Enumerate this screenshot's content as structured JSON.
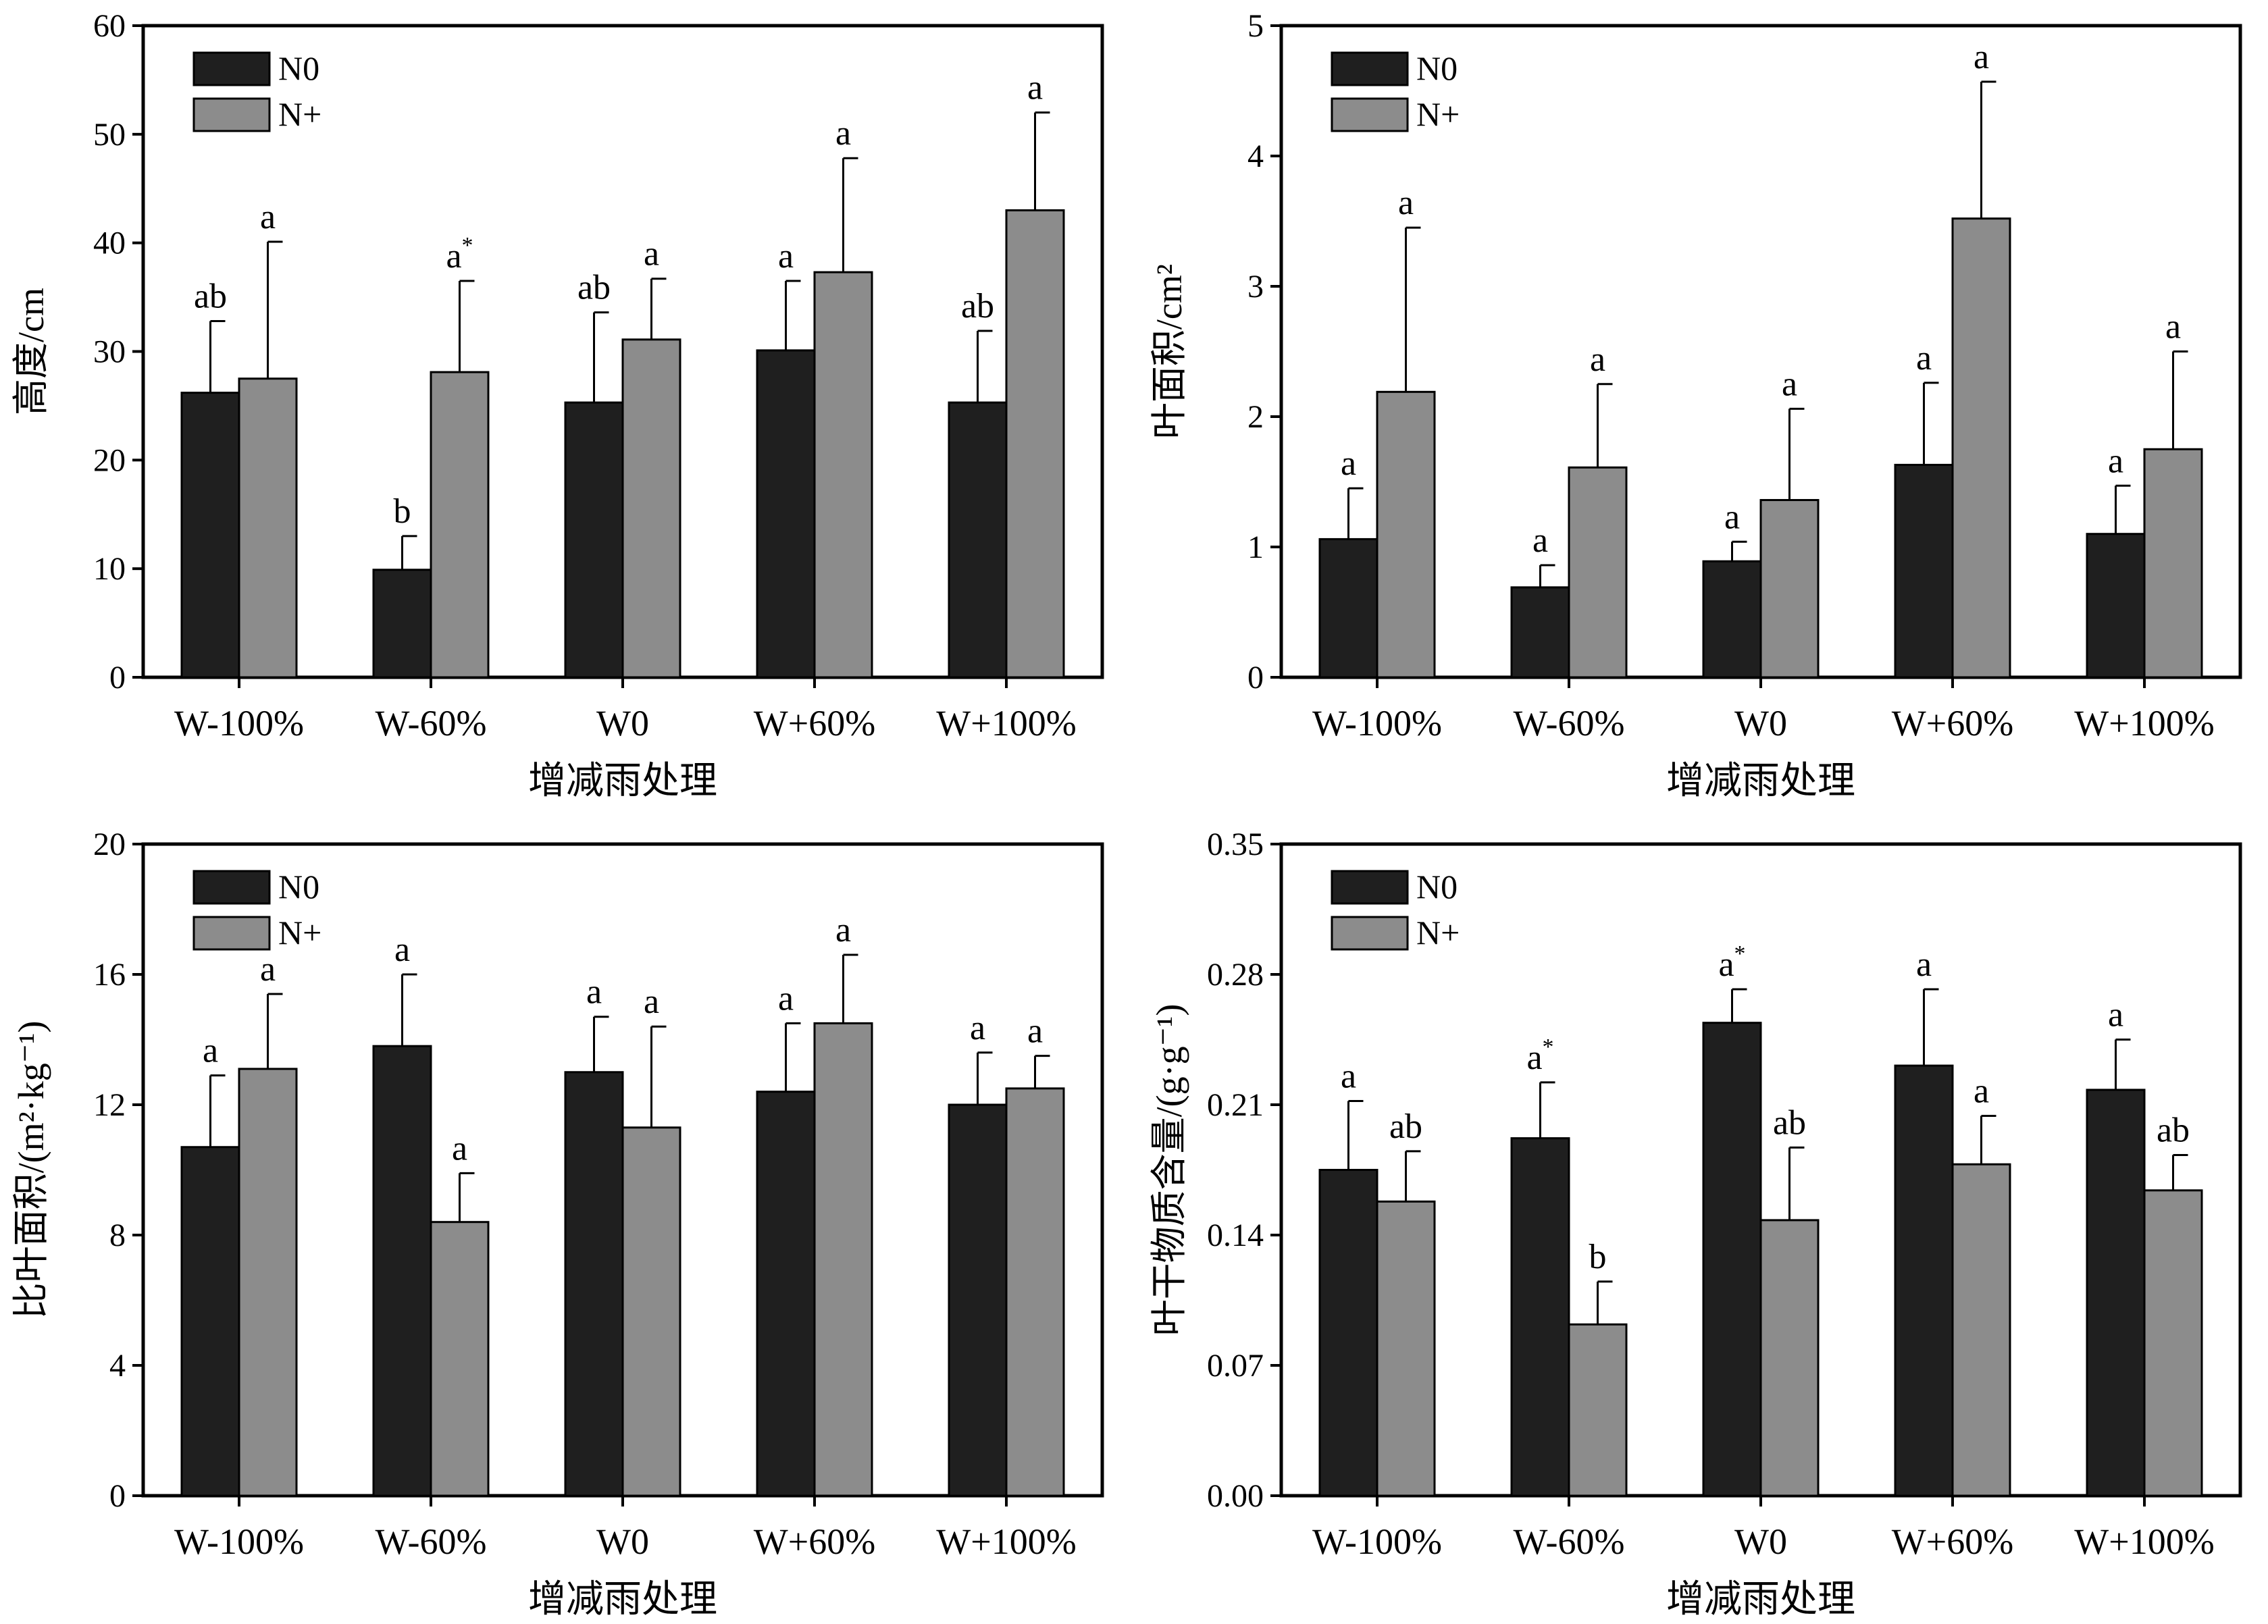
{
  "colors": {
    "N0": "#1f1f1f",
    "N+": "#8c8c8c",
    "axis": "#000000"
  },
  "chart_data": [
    {
      "type": "bar",
      "categories": [
        "W-100%",
        "W-60%",
        "W0",
        "W+60%",
        "W+100%"
      ],
      "xlabel": "增减雨处理",
      "ylabel": "高度/cm",
      "ylim": [
        0,
        60
      ],
      "yticks": [
        "0",
        "10",
        "20",
        "30",
        "40",
        "50",
        "60"
      ],
      "series": [
        {
          "name": "N0",
          "values": [
            26.2,
            9.9,
            25.3,
            30.1,
            25.3
          ],
          "err": [
            32.8,
            13.0,
            33.6,
            36.5,
            31.9
          ],
          "labels": [
            "ab",
            "b",
            "ab",
            "a",
            "ab"
          ],
          "stars": [
            false,
            false,
            false,
            false,
            false
          ]
        },
        {
          "name": "N+",
          "values": [
            27.5,
            28.1,
            31.1,
            37.3,
            43.0
          ],
          "err": [
            40.1,
            36.5,
            36.7,
            47.8,
            52.0
          ],
          "labels": [
            "a",
            "a",
            "a",
            "a",
            "a"
          ],
          "stars": [
            false,
            true,
            false,
            false,
            false
          ]
        }
      ]
    },
    {
      "type": "bar",
      "categories": [
        "W-100%",
        "W-60%",
        "W0",
        "W+60%",
        "W+100%"
      ],
      "xlabel": "增减雨处理",
      "ylabel": "叶面积/cm²",
      "ylim": [
        0,
        5
      ],
      "yticks": [
        "0",
        "1",
        "2",
        "3",
        "4",
        "5"
      ],
      "series": [
        {
          "name": "N0",
          "values": [
            1.06,
            0.69,
            0.89,
            1.63,
            1.1
          ],
          "err": [
            1.45,
            0.86,
            1.04,
            2.26,
            1.47
          ],
          "labels": [
            "a",
            "a",
            "a",
            "a",
            "a"
          ],
          "stars": [
            false,
            false,
            false,
            false,
            false
          ]
        },
        {
          "name": "N+",
          "values": [
            2.19,
            1.61,
            1.36,
            3.52,
            1.75
          ],
          "err": [
            3.45,
            2.25,
            2.06,
            4.57,
            2.5
          ],
          "labels": [
            "a",
            "a",
            "a",
            "a",
            "a"
          ],
          "stars": [
            false,
            false,
            false,
            false,
            false
          ]
        }
      ]
    },
    {
      "type": "bar",
      "categories": [
        "W-100%",
        "W-60%",
        "W0",
        "W+60%",
        "W+100%"
      ],
      "xlabel": "增减雨处理",
      "ylabel": "比叶面积/(m²·kg⁻¹)",
      "ylim": [
        0,
        20
      ],
      "yticks": [
        "0",
        "4",
        "8",
        "12",
        "16",
        "20"
      ],
      "series": [
        {
          "name": "N0",
          "values": [
            10.7,
            13.8,
            13.0,
            12.4,
            12.0
          ],
          "err": [
            12.9,
            16.0,
            14.7,
            14.5,
            13.6
          ],
          "labels": [
            "a",
            "a",
            "a",
            "a",
            "a"
          ],
          "stars": [
            false,
            false,
            false,
            false,
            false
          ]
        },
        {
          "name": "N+",
          "values": [
            13.1,
            8.4,
            11.3,
            14.5,
            12.5
          ],
          "err": [
            15.4,
            9.9,
            14.4,
            16.6,
            13.5
          ],
          "labels": [
            "a",
            "a",
            "a",
            "a",
            "a"
          ],
          "stars": [
            false,
            false,
            false,
            false,
            false
          ]
        }
      ]
    },
    {
      "type": "bar",
      "categories": [
        "W-100%",
        "W-60%",
        "W0",
        "W+60%",
        "W+100%"
      ],
      "xlabel": "增减雨处理",
      "ylabel": "叶干物质含量/(g·g⁻¹)",
      "ylim": [
        0,
        0.35
      ],
      "yticks": [
        "0.00",
        "0.07",
        "0.14",
        "0.21",
        "0.28",
        "0.35"
      ],
      "series": [
        {
          "name": "N0",
          "values": [
            0.175,
            0.192,
            0.254,
            0.231,
            0.218
          ],
          "err": [
            0.212,
            0.222,
            0.272,
            0.272,
            0.245
          ],
          "labels": [
            "a",
            "a",
            "a",
            "a",
            "a"
          ],
          "stars": [
            false,
            true,
            true,
            false,
            false
          ]
        },
        {
          "name": "N+",
          "values": [
            0.158,
            0.092,
            0.148,
            0.178,
            0.164
          ],
          "err": [
            0.185,
            0.115,
            0.187,
            0.204,
            0.183
          ],
          "labels": [
            "ab",
            "b",
            "ab",
            "a",
            "ab"
          ],
          "stars": [
            false,
            false,
            false,
            false,
            false
          ]
        }
      ]
    }
  ]
}
